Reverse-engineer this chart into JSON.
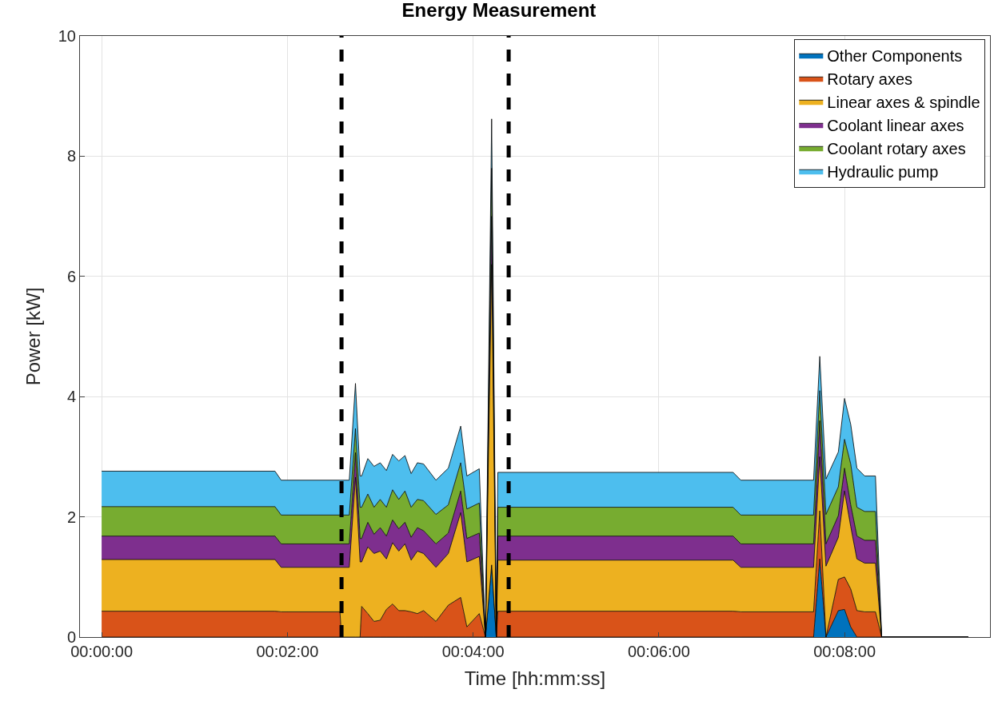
{
  "chart_data": {
    "type": "area",
    "stacked": true,
    "title": "Energy Measurement",
    "xlabel": "Time [hh:mm:ss]",
    "ylabel": "Power [kW]",
    "x": [
      0,
      112,
      116,
      154,
      155,
      160,
      164,
      167,
      168,
      172,
      176,
      180,
      184,
      188,
      192,
      196,
      200,
      204,
      208,
      216,
      224,
      232,
      236,
      244,
      248,
      252,
      255,
      256,
      408,
      413,
      460,
      464,
      468,
      476,
      480,
      484,
      488,
      493,
      500,
      504,
      560
    ],
    "series": [
      {
        "name": "Other Components",
        "color": "#0072bd",
        "values": [
          0,
          0,
          0,
          0,
          0,
          0,
          0,
          0,
          0,
          0,
          0,
          0,
          0,
          0,
          0,
          0,
          0,
          0,
          0,
          0,
          0,
          0,
          0,
          0,
          0,
          1.2,
          0,
          0,
          0,
          0,
          0,
          1.3,
          0,
          0.44,
          0.46,
          0.17,
          0,
          0,
          0,
          0,
          0
        ]
      },
      {
        "name": "Rotary axes",
        "color": "#d95319",
        "values": [
          0.43,
          0.43,
          0.42,
          0.42,
          0,
          0,
          0,
          0,
          0.51,
          0.39,
          0.26,
          0.28,
          0.46,
          0.55,
          0.44,
          0.44,
          0.42,
          0.39,
          0.44,
          0.26,
          0.53,
          0.66,
          0.17,
          0.39,
          0,
          0,
          0,
          0.43,
          0.43,
          0.42,
          0.42,
          0.8,
          0,
          0.52,
          0.54,
          0.63,
          0.44,
          0.42,
          0.42,
          0,
          0
        ]
      },
      {
        "name": "Linear axes & spindle",
        "color": "#edb120",
        "values": [
          0.86,
          0.86,
          0.74,
          0.74,
          1.16,
          1.16,
          2.66,
          1.25,
          0.74,
          1.11,
          1.13,
          1.15,
          0.84,
          1.02,
          0.99,
          1.11,
          0.86,
          1.04,
          0.95,
          0.9,
          0.86,
          1.41,
          1.08,
          0.95,
          0,
          5.0,
          0,
          0.85,
          0.85,
          0.74,
          0.74,
          0.9,
          1.18,
          0.7,
          1.43,
          1.04,
          0.86,
          0.81,
          0.81,
          0,
          0
        ]
      },
      {
        "name": "Coolant linear axes",
        "color": "#7e2f8e",
        "values": [
          0.39,
          0.39,
          0.39,
          0.39,
          0.39,
          0.39,
          0.41,
          0.39,
          0.39,
          0.41,
          0.32,
          0.39,
          0.38,
          0.38,
          0.37,
          0.36,
          0.38,
          0.39,
          0.38,
          0.39,
          0.34,
          0.36,
          0.39,
          0.39,
          0,
          0.8,
          0,
          0.4,
          0.4,
          0.39,
          0.39,
          0.6,
          0.37,
          0.36,
          0.38,
          0.36,
          0.38,
          0.38,
          0.38,
          0,
          0
        ]
      },
      {
        "name": "Coolant rotary axes",
        "color": "#77ac30",
        "values": [
          0.49,
          0.49,
          0.48,
          0.48,
          0.48,
          0.48,
          0.4,
          0.52,
          0.52,
          0.47,
          0.45,
          0.47,
          0.48,
          0.5,
          0.49,
          0.52,
          0.5,
          0.47,
          0.5,
          0.49,
          0.47,
          0.47,
          0.49,
          0.5,
          0,
          0.8,
          0,
          0.48,
          0.48,
          0.48,
          0.48,
          0.5,
          0.49,
          0.48,
          0.48,
          0.68,
          0.48,
          0.48,
          0.48,
          0,
          0
        ]
      },
      {
        "name": "Hydraulic pump",
        "color": "#4dbeee",
        "values": [
          0.59,
          0.59,
          0.58,
          0.58,
          0.58,
          0.58,
          0.75,
          0.52,
          0.52,
          0.59,
          0.68,
          0.61,
          0.61,
          0.59,
          0.64,
          0.59,
          0.56,
          0.61,
          0.61,
          0.57,
          0.61,
          0.61,
          0.55,
          0.57,
          0,
          0.82,
          0,
          0.58,
          0.58,
          0.58,
          0.58,
          0.57,
          0.59,
          0.58,
          0.68,
          0.66,
          0.65,
          0.59,
          0.59,
          0,
          0
        ]
      }
    ],
    "xlim": [
      -14,
      574
    ],
    "xticks": [
      {
        "value": 0,
        "label": "00:00:00"
      },
      {
        "value": 120,
        "label": "00:02:00"
      },
      {
        "value": 240,
        "label": "00:04:00"
      },
      {
        "value": 360,
        "label": "00:06:00"
      },
      {
        "value": 480,
        "label": "00:08:00"
      }
    ],
    "ylim": [
      0,
      10
    ],
    "yticks": [
      0,
      2,
      4,
      6,
      8,
      10
    ],
    "ref_lines": [
      {
        "axis": "x",
        "value": 155,
        "color": "#000000",
        "line_style": "dashed"
      },
      {
        "axis": "x",
        "value": 263,
        "color": "#000000",
        "line_style": "dashed"
      }
    ],
    "grid": true,
    "legend": "top right"
  }
}
